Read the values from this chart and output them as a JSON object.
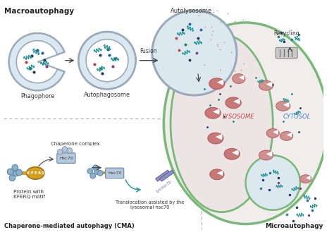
{
  "bg_color": "#ffffff",
  "macroautophagy_label": "Macroautophagy",
  "phagophore_label": "Phagophore",
  "autophagosome_label": "Autophagosome",
  "autolysosome_label": "Autolysosome",
  "fusion_label": "Fusion",
  "recycling_label": "Recycling",
  "lysosome_label": "LYSOSOME",
  "cytosol_label": "CYTOSOL",
  "cma_label": "Chaperone-mediated autophagy (CMA)",
  "microautophagy_label": "Microautophagy",
  "chaperone_label": "Chaperone complex",
  "hsc70_label": "Hsc70",
  "kferq_label": "Protein with\nKFERQ motif",
  "translocation_label": "Translocation assisted by the\nlysosomal hsc70",
  "cell_fill": "#f2eded",
  "cell_border": "#7ab87a",
  "lyso_fill": "#ede5e5",
  "phago_fill": "#dce8f0",
  "phago_border": "#9aaabb",
  "arrow_color": "#444444",
  "dot_dark_blue": "#1a3a5c",
  "dot_mid_blue": "#2060a0",
  "dot_teal": "#208080",
  "dot_green": "#208060",
  "dot_red": "#c04040",
  "dot_purple": "#804080",
  "wavy_color": "#209090",
  "lyso_text_color": "#c04040",
  "cytosol_text_color": "#4080c0",
  "kidney_color": "#c87878",
  "dash_color": "#aaaaaa",
  "protein_color": "#d4a020",
  "chaperone_fill": "#90b0c8",
  "hsc70_fill": "#b8c8d8",
  "lyshsc70_fill": "#9090c0",
  "kferq_letters": [
    "K",
    "F",
    "E",
    "R",
    "Q"
  ]
}
